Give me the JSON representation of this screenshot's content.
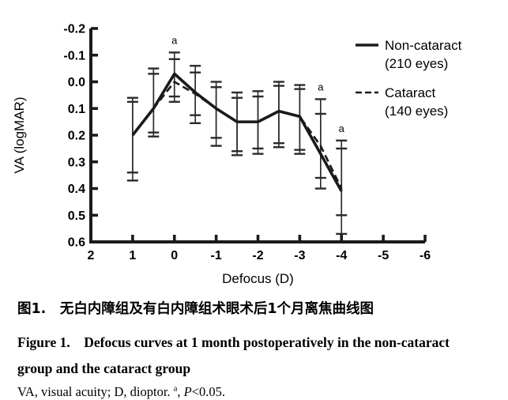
{
  "chart_data": {
    "type": "line",
    "title": "",
    "xlabel": "Defocus (D)",
    "ylabel": "VA (logMAR)",
    "xlim": [
      2,
      -6
    ],
    "ylim": [
      -0.2,
      0.6
    ],
    "y_axis_direction": "inverted (-0.2 at top, 0.6 at bottom)",
    "x_ticks": [
      2,
      1,
      0,
      -1,
      -2,
      -3,
      -4,
      -5,
      -6
    ],
    "y_ticks": [
      -0.2,
      -0.1,
      0.0,
      0.1,
      0.2,
      0.3,
      0.4,
      0.5,
      0.6
    ],
    "grid": false,
    "legend_position": "upper right, outside plot",
    "x": [
      1,
      0.5,
      0,
      -0.5,
      -1,
      -1.5,
      -2,
      -2.5,
      -3,
      -3.5,
      -4
    ],
    "series": [
      {
        "name": "Non-cataract (210 eyes)",
        "line_style": "solid",
        "values": [
          0.2,
          0.1,
          -0.03,
          0.04,
          0.1,
          0.15,
          0.15,
          0.11,
          0.13,
          0.27,
          0.41
        ],
        "err_upper": [
          0.06,
          -0.05,
          -0.11,
          -0.06,
          0.0,
          0.04,
          0.035,
          0.0,
          0.012,
          0.12,
          0.25
        ],
        "err_lower": [
          0.34,
          0.19,
          0.055,
          0.125,
          0.21,
          0.26,
          0.25,
          0.23,
          0.255,
          0.4,
          0.57
        ]
      },
      {
        "name": "Cataract (140 eyes)",
        "line_style": "dashed",
        "values": [
          0.2,
          0.1,
          0.0,
          0.045,
          0.1,
          0.15,
          0.15,
          0.11,
          0.13,
          0.24,
          0.4
        ],
        "err_upper": [
          0.075,
          -0.03,
          -0.085,
          -0.035,
          0.02,
          0.06,
          0.055,
          0.015,
          0.027,
          0.065,
          0.22
        ],
        "err_lower": [
          0.37,
          0.205,
          0.075,
          0.155,
          0.24,
          0.275,
          0.27,
          0.245,
          0.27,
          0.36,
          0.5
        ]
      }
    ],
    "legend": [
      {
        "label": "Non-cataract",
        "sublabel": "(210 eyes)",
        "line_style": "solid"
      },
      {
        "label": "Cataract",
        "sublabel": "(140 eyes)",
        "line_style": "dashed"
      }
    ],
    "significance_marker": {
      "symbol": "a",
      "at_x": [
        0,
        -3.5,
        -4
      ],
      "meaning": "P<0.05"
    }
  },
  "caption": {
    "chinese_title": "图1.　无白内障组及有白内障组术眼术后1个月离焦曲线图",
    "english_title_line1": "Figure 1. Defocus curves at 1 month postoperatively in the non-cataract",
    "english_title_line2": "group and the cataract group",
    "note_prefix": "VA, visual acuity; D, dioptor. ",
    "note_superscript": "a",
    "note_mid": ", ",
    "note_p_symbol": "P",
    "note_p_value": "<0.05."
  },
  "colors": {
    "line": "#1a1a1a",
    "error_bar": "#2b2b2b",
    "text": "#000000",
    "background": "#ffffff"
  }
}
